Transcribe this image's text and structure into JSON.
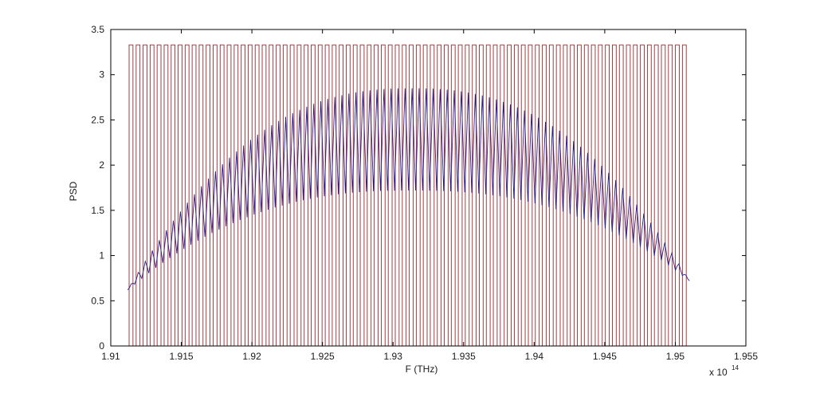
{
  "chart_data": {
    "type": "line",
    "title": "",
    "xlabel": "F (THz)",
    "ylabel": "PSD",
    "x_multiplier": "x 10",
    "x_multiplier_exponent": "14",
    "xlim": [
      1.91,
      1.955
    ],
    "ylim": [
      0,
      3.5
    ],
    "x_ticks": [
      1.91,
      1.915,
      1.92,
      1.925,
      1.93,
      1.935,
      1.94,
      1.945,
      1.95,
      1.955
    ],
    "x_tick_labels": [
      "1.91",
      "1.915",
      "1.92",
      "1.925",
      "1.93",
      "1.935",
      "1.94",
      "1.945",
      "1.95",
      "1.955"
    ],
    "y_ticks": [
      0,
      0.5,
      1,
      1.5,
      2,
      2.5,
      3,
      3.5
    ],
    "y_tick_labels": [
      "0",
      "0.5",
      "1",
      "1.5",
      "2",
      "2.5",
      "3",
      "3.5"
    ],
    "grid": false,
    "legend": "none",
    "series": [
      {
        "style": "rectangular pulse train",
        "color": "#a0282d",
        "x_start": 1.9113,
        "x_end": 1.951,
        "channel_count": 80,
        "high_value": 3.33,
        "low_value": 0
      },
      {
        "style": "oscillating envelope",
        "color": "#2b1f8f",
        "x_start": 1.9112,
        "x_end": 1.951,
        "peak_x": 1.9313,
        "upper_peak": 2.85,
        "middle_peak": 2.3,
        "lower_peak": 1.72,
        "left_edge_value": 0.62,
        "right_edge_value": 0.72,
        "oscillation_count": 80
      }
    ]
  }
}
